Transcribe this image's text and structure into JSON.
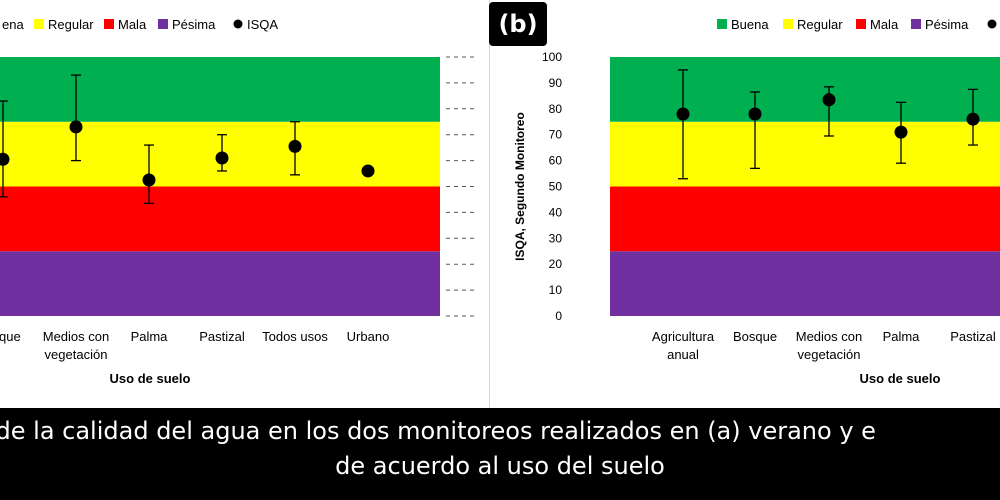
{
  "caption": {
    "line1": "ón de la calidad del agua en los dos monitoreos realizados en (a) verano y e",
    "line2": "de acuerdo al uso del suelo"
  },
  "panel_b_label": "(b)",
  "bands": [
    {
      "name": "Pésima",
      "from": 0,
      "to": 25,
      "color": "#7030A0"
    },
    {
      "name": "Mala",
      "from": 25,
      "to": 50,
      "color": "#FF0000"
    },
    {
      "name": "Regular",
      "from": 50,
      "to": 75,
      "color": "#FFFF00"
    },
    {
      "name": "Buena",
      "from": 75,
      "to": 100,
      "color": "#00B050"
    }
  ],
  "chart_data": [
    {
      "type": "scatter",
      "panel": "a",
      "xlabel": "Uso de suelo",
      "ylabel": "",
      "ylim": [
        0,
        100
      ],
      "legend": [
        {
          "label": "ena",
          "color": "#00B050",
          "marker": "square"
        },
        {
          "label": "Regular",
          "color": "#FFFF00",
          "marker": "square"
        },
        {
          "label": "Mala",
          "color": "#FF0000",
          "marker": "square"
        },
        {
          "label": "Pésima",
          "color": "#7030A0",
          "marker": "square"
        },
        {
          "label": "ISQA",
          "color": "#000000",
          "marker": "circle"
        }
      ],
      "categories": [
        {
          "label": [
            "osque"
          ],
          "mean": 60.5,
          "low": 46,
          "high": 83
        },
        {
          "label": [
            "Medios con",
            "vegetación"
          ],
          "mean": 73,
          "low": 60,
          "high": 93
        },
        {
          "label": [
            "Palma"
          ],
          "mean": 52.5,
          "low": 43.5,
          "high": 66
        },
        {
          "label": [
            "Pastizal"
          ],
          "mean": 61,
          "low": 56,
          "high": 70
        },
        {
          "label": [
            "Todos usos"
          ],
          "mean": 65.5,
          "low": 54.5,
          "high": 75
        },
        {
          "label": [
            "Urbano"
          ],
          "mean": 56,
          "low": null,
          "high": null
        }
      ]
    },
    {
      "type": "scatter",
      "panel": "b",
      "xlabel": "Uso de suelo",
      "ylabel": "ISQA, Segundo Monitoreo",
      "ylim": [
        0,
        100
      ],
      "yticks": [
        "0",
        "10",
        "20",
        "30",
        "40",
        "50",
        "60",
        "70",
        "80",
        "90",
        "100"
      ],
      "legend": [
        {
          "label": "Buena",
          "color": "#00B050",
          "marker": "square"
        },
        {
          "label": "Regular",
          "color": "#FFFF00",
          "marker": "square"
        },
        {
          "label": "Mala",
          "color": "#FF0000",
          "marker": "square"
        },
        {
          "label": "Pésima",
          "color": "#7030A0",
          "marker": "square"
        },
        {
          "label": "I",
          "color": "#000000",
          "marker": "circle"
        }
      ],
      "categories": [
        {
          "label": [
            "Agricultura",
            "anual"
          ],
          "mean": 78,
          "low": 53,
          "high": 95
        },
        {
          "label": [
            "Bosque"
          ],
          "mean": 78,
          "low": 57,
          "high": 86.5
        },
        {
          "label": [
            "Medios con",
            "vegetación"
          ],
          "mean": 83.5,
          "low": 69.5,
          "high": 88.5
        },
        {
          "label": [
            "Palma"
          ],
          "mean": 71,
          "low": 59,
          "high": 82.5
        },
        {
          "label": [
            "Pastizal"
          ],
          "mean": 76,
          "low": 66,
          "high": 87.5
        }
      ]
    }
  ]
}
